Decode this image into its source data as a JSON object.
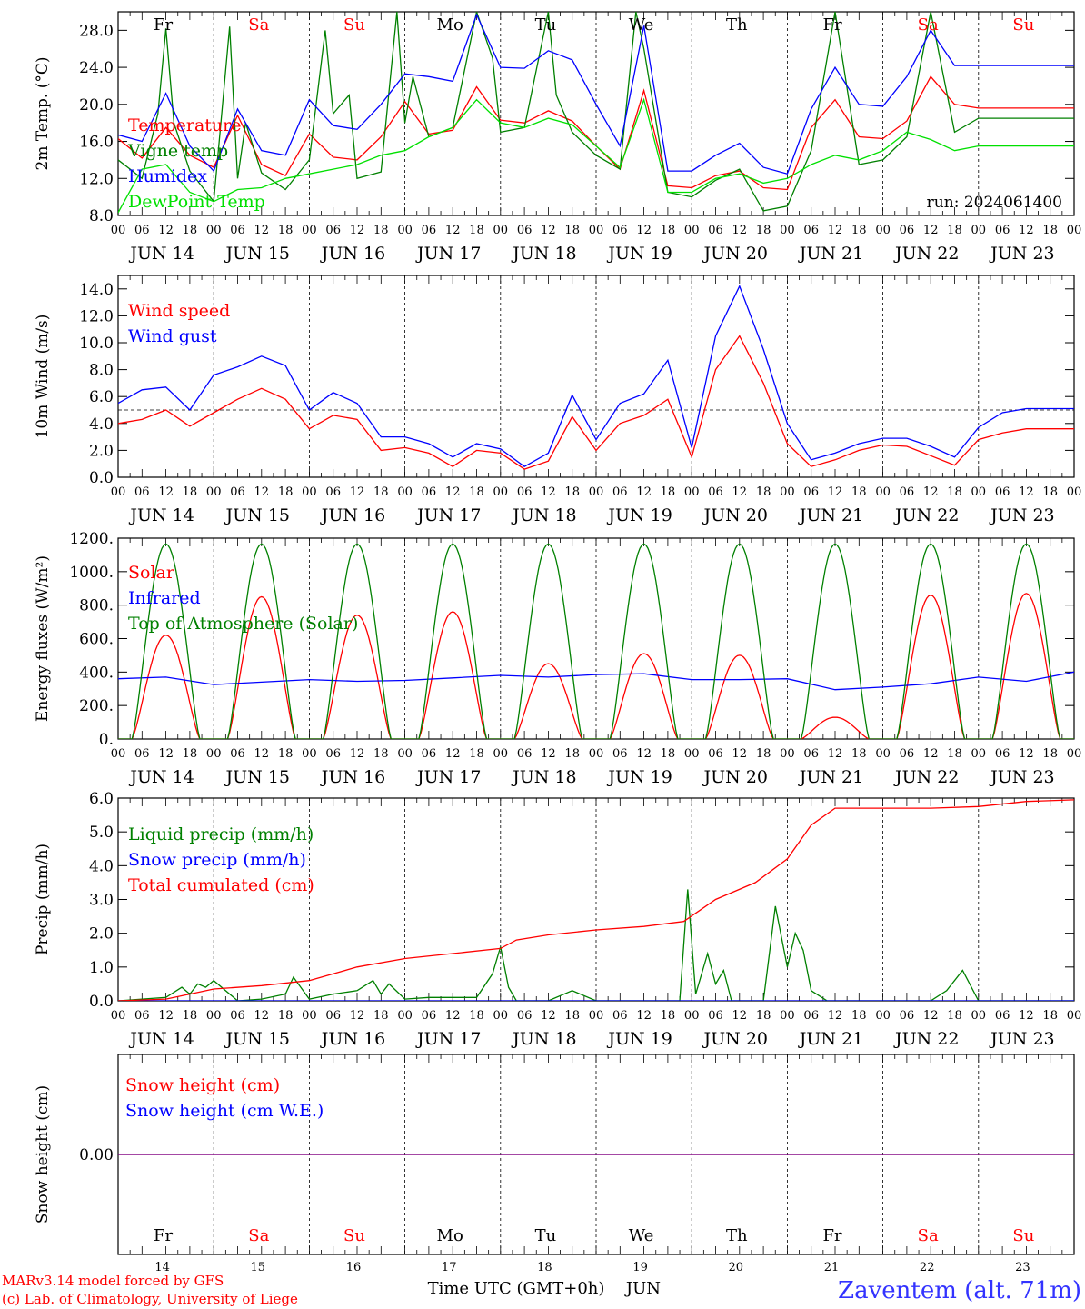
{
  "colors": {
    "red": "#ff0000",
    "green": "#008000",
    "blue": "#0000ff",
    "lightgreen": "#00e000",
    "purple": "#800080",
    "axis": "#000000",
    "footer_blue": "#3333ff"
  },
  "common": {
    "hour_ticks": [
      "00",
      "06",
      "12",
      "18"
    ],
    "last_tick": "00",
    "dates": [
      "JUN 14",
      "JUN 15",
      "JUN 16",
      "JUN 17",
      "JUN 18",
      "JUN 19",
      "JUN 20",
      "JUN 21",
      "JUN 22",
      "JUN 23"
    ],
    "weekdays": [
      "Fr",
      "Sa",
      "Su",
      "Mo",
      "Tu",
      "We",
      "Th",
      "Fr",
      "Sa",
      "Su"
    ],
    "weekday_colors": [
      "#000000",
      "#ff0000",
      "#ff0000",
      "#000000",
      "#000000",
      "#000000",
      "#000000",
      "#000000",
      "#ff0000",
      "#ff0000"
    ],
    "day_numbers": [
      "14",
      "15",
      "16",
      "17",
      "18",
      "19",
      "20",
      "21",
      "22",
      "23"
    ]
  },
  "footer": {
    "model_line": "MARv3.14 model forced by GFS",
    "credit_line": "(c) Lab. of Climatology, University of Liege",
    "xlabel": "Time UTC (GMT+0h)",
    "month": "JUN",
    "station": "Zaventem (alt. 71m)"
  },
  "chart_data": [
    {
      "type": "line",
      "ylabel": "2m Temp. (°C)",
      "ylim": [
        8,
        30
      ],
      "yticks": [
        8,
        12,
        16,
        20,
        24,
        28
      ],
      "ytick_labels": [
        "8.0",
        "12.0",
        "16.0",
        "20.0",
        "24.0",
        "28.0"
      ],
      "annotation": "run: 2024061400",
      "x_unit": "hours since JUN 14 00 UTC",
      "legend": "top-left",
      "series": [
        {
          "name": "Temperature",
          "color": "#ff0000",
          "x": [
            0,
            6,
            12,
            18,
            24,
            30,
            36,
            42,
            48,
            54,
            60,
            66,
            72,
            78,
            84,
            90,
            96,
            102,
            108,
            114,
            120,
            126,
            132,
            138,
            144,
            150,
            156,
            162,
            168,
            174,
            180,
            186,
            192,
            198,
            204,
            210,
            216,
            222,
            228,
            234,
            240
          ],
          "y": [
            16.3,
            14.2,
            17.5,
            14.5,
            13.2,
            18.8,
            13.5,
            12.3,
            16.8,
            14.3,
            14.0,
            16.5,
            20.3,
            16.8,
            17.2,
            21.9,
            18.3,
            18.0,
            19.3,
            18.2,
            15.5,
            13.0,
            21.5,
            11.2,
            11.0,
            12.3,
            12.8,
            11.0,
            10.8,
            17.5,
            20.5,
            16.5,
            16.3,
            18.2,
            23.0,
            20.0,
            19.6,
            19.6,
            19.6,
            19.6,
            19.6
          ]
        },
        {
          "name": "Vigne temp",
          "color": "#008000",
          "x": [
            0,
            6,
            10,
            12,
            14,
            18,
            24,
            28,
            30,
            32,
            36,
            42,
            48,
            52,
            54,
            58,
            60,
            66,
            70,
            72,
            74,
            78,
            84,
            90,
            94,
            96,
            102,
            108,
            110,
            114,
            120,
            126,
            130,
            132,
            138,
            144,
            150,
            156,
            162,
            168,
            174,
            180,
            186,
            192,
            198,
            204,
            210,
            216,
            222,
            228,
            234,
            240
          ],
          "y": [
            14.0,
            12.0,
            19.0,
            28.2,
            18.0,
            12.8,
            9.5,
            28.4,
            12.0,
            18.0,
            12.6,
            10.8,
            14.0,
            28.0,
            19.0,
            21.0,
            12.0,
            12.7,
            30.0,
            18.0,
            23.0,
            16.5,
            17.5,
            30.0,
            25.0,
            17.0,
            17.5,
            30.0,
            21.0,
            17.0,
            14.5,
            13.0,
            30.0,
            26.0,
            10.5,
            10.0,
            11.8,
            13.0,
            8.5,
            9.0,
            15.0,
            30.0,
            13.5,
            14.0,
            16.5,
            30.0,
            17.0,
            18.5,
            18.5,
            18.5,
            18.5,
            18.5
          ]
        },
        {
          "name": "Humidex",
          "color": "#0000ff",
          "x": [
            0,
            6,
            12,
            18,
            24,
            30,
            36,
            42,
            48,
            54,
            60,
            66,
            72,
            78,
            84,
            90,
            96,
            102,
            108,
            114,
            120,
            126,
            132,
            138,
            144,
            150,
            156,
            162,
            168,
            174,
            180,
            186,
            192,
            198,
            204,
            210,
            216,
            222,
            228,
            234,
            240
          ],
          "y": [
            16.7,
            16.0,
            21.2,
            15.5,
            12.8,
            19.5,
            15.0,
            14.5,
            20.5,
            17.7,
            17.3,
            20.0,
            23.3,
            23.0,
            22.5,
            29.7,
            24.0,
            23.9,
            25.8,
            24.8,
            20.0,
            15.5,
            28.5,
            12.8,
            12.8,
            14.5,
            15.8,
            13.2,
            12.5,
            19.5,
            24.0,
            20.0,
            19.8,
            23.0,
            28.0,
            24.2,
            24.2,
            24.2,
            24.2,
            24.2,
            24.2
          ]
        },
        {
          "name": "DewPoint Temp",
          "color": "#00e000",
          "x": [
            0,
            6,
            12,
            18,
            24,
            30,
            36,
            42,
            48,
            54,
            60,
            66,
            72,
            78,
            84,
            90,
            96,
            102,
            108,
            114,
            120,
            126,
            132,
            138,
            144,
            150,
            156,
            162,
            168,
            174,
            180,
            186,
            192,
            198,
            204,
            210,
            216,
            222,
            228,
            234,
            240
          ],
          "y": [
            8.3,
            13.0,
            13.5,
            10.5,
            9.5,
            10.8,
            11.0,
            12.0,
            12.5,
            13.0,
            13.5,
            14.5,
            15.0,
            16.5,
            17.5,
            20.5,
            18.0,
            17.5,
            18.5,
            17.8,
            15.5,
            13.2,
            20.5,
            10.5,
            10.5,
            12.0,
            12.5,
            11.5,
            12.0,
            13.5,
            14.5,
            14.0,
            15.0,
            17.0,
            16.2,
            15.0,
            15.5,
            15.5,
            15.5,
            15.5,
            15.5
          ]
        }
      ]
    },
    {
      "type": "line",
      "ylabel": "10m Wind (m/s)",
      "ylim": [
        0,
        15
      ],
      "yticks": [
        0,
        2,
        4,
        6,
        8,
        10,
        12,
        14
      ],
      "ytick_labels": [
        "0.0",
        "2.0",
        "4.0",
        "6.0",
        "8.0",
        "10.0",
        "12.0",
        "14.0"
      ],
      "reference_line": 5.0,
      "x_unit": "hours since JUN 14 00 UTC",
      "legend": "top-left",
      "series": [
        {
          "name": "Wind speed",
          "color": "#ff0000",
          "x": [
            0,
            6,
            12,
            18,
            24,
            30,
            36,
            42,
            48,
            54,
            60,
            66,
            72,
            78,
            84,
            90,
            96,
            102,
            108,
            114,
            120,
            126,
            132,
            138,
            144,
            150,
            156,
            162,
            168,
            174,
            180,
            186,
            192,
            198,
            204,
            210,
            216,
            222,
            228,
            234,
            240
          ],
          "y": [
            4.0,
            4.3,
            5.0,
            3.8,
            4.8,
            5.8,
            6.6,
            5.8,
            3.6,
            4.6,
            4.3,
            2.0,
            2.2,
            1.8,
            0.8,
            2.0,
            1.8,
            0.6,
            1.2,
            4.5,
            2.0,
            4.0,
            4.6,
            5.8,
            1.5,
            8.0,
            10.5,
            7.0,
            2.5,
            0.8,
            1.3,
            2.0,
            2.4,
            2.3,
            1.6,
            0.9,
            2.8,
            3.3,
            3.6,
            3.6,
            3.6
          ]
        },
        {
          "name": "Wind gust",
          "color": "#0000ff",
          "x": [
            0,
            6,
            12,
            18,
            24,
            30,
            36,
            42,
            48,
            54,
            60,
            66,
            72,
            78,
            84,
            90,
            96,
            102,
            108,
            114,
            120,
            126,
            132,
            138,
            144,
            150,
            156,
            162,
            168,
            174,
            180,
            186,
            192,
            198,
            204,
            210,
            216,
            222,
            228,
            234,
            240
          ],
          "y": [
            5.5,
            6.5,
            6.7,
            5.0,
            7.6,
            8.2,
            9.0,
            8.3,
            5.0,
            6.3,
            5.5,
            3.0,
            3.0,
            2.5,
            1.5,
            2.5,
            2.1,
            0.8,
            1.8,
            6.1,
            2.8,
            5.5,
            6.2,
            8.7,
            2.2,
            10.5,
            14.2,
            9.5,
            4.0,
            1.3,
            1.8,
            2.5,
            2.9,
            2.9,
            2.3,
            1.5,
            3.7,
            4.8,
            5.1,
            5.1,
            5.1
          ]
        }
      ]
    },
    {
      "type": "line",
      "ylabel": "Energy fluxes (W/m²)",
      "ylim": [
        0,
        1200
      ],
      "yticks": [
        0,
        200,
        400,
        600,
        800,
        1000,
        1200
      ],
      "ytick_labels": [
        "0.",
        "200.",
        "400.",
        "600.",
        "800.",
        "1000.",
        "1200."
      ],
      "x_unit": "hours since JUN 14 00 UTC",
      "legend": "top-left",
      "series": [
        {
          "name": "Solar",
          "color": "#ff0000",
          "days_peak": [
            620,
            850,
            740,
            760,
            450,
            510,
            500,
            130,
            860,
            870
          ],
          "day_start_h": 3.5,
          "day_end_h": 20.5
        },
        {
          "name": "Infrared",
          "color": "#0000ff",
          "x": [
            0,
            12,
            24,
            36,
            48,
            60,
            72,
            84,
            96,
            108,
            120,
            132,
            144,
            156,
            168,
            180,
            192,
            204,
            216,
            228,
            240
          ],
          "y": [
            360,
            370,
            325,
            340,
            355,
            345,
            350,
            365,
            380,
            370,
            385,
            390,
            355,
            355,
            360,
            295,
            310,
            330,
            370,
            345,
            400
          ]
        },
        {
          "name": "Top of Atmosphere (Solar)",
          "color": "#008000",
          "days_peak": [
            1165,
            1165,
            1165,
            1165,
            1165,
            1165,
            1165,
            1165,
            1165,
            1165
          ],
          "day_start_h": 3.5,
          "day_end_h": 20.5
        }
      ]
    },
    {
      "type": "line",
      "ylabel": "Precip (mm/h)",
      "ylim": [
        0,
        6
      ],
      "yticks": [
        0,
        1,
        2,
        3,
        4,
        5,
        6
      ],
      "ytick_labels": [
        "0.0",
        "1.0",
        "2.0",
        "3.0",
        "4.0",
        "5.0",
        "6.0"
      ],
      "x_unit": "hours since JUN 14 00 UTC",
      "legend": "top-left",
      "series": [
        {
          "name": "Liquid precip (mm/h)",
          "color": "#008000",
          "x": [
            0,
            12,
            16,
            18,
            20,
            22,
            24,
            30,
            36,
            42,
            44,
            48,
            54,
            60,
            64,
            66,
            68,
            72,
            78,
            90,
            94,
            96,
            98,
            100,
            108,
            114,
            120,
            132,
            141,
            143,
            145,
            148,
            150,
            152,
            154,
            158,
            162,
            165,
            168,
            170,
            172,
            174,
            178,
            180,
            190,
            192,
            200,
            204,
            208,
            212,
            216,
            222,
            228,
            234,
            240
          ],
          "y": [
            0.0,
            0.1,
            0.4,
            0.2,
            0.5,
            0.4,
            0.6,
            0.0,
            0.05,
            0.2,
            0.7,
            0.05,
            0.2,
            0.3,
            0.6,
            0.2,
            0.5,
            0.05,
            0.1,
            0.1,
            0.8,
            1.6,
            0.4,
            0.0,
            0.0,
            0.3,
            0.0,
            0.0,
            0.0,
            3.3,
            0.2,
            1.4,
            0.5,
            0.9,
            0.0,
            0.0,
            0.0,
            2.8,
            1.0,
            2.0,
            1.5,
            0.3,
            0.0,
            0.0,
            0.0,
            0.0,
            0.0,
            0.0,
            0.3,
            0.9,
            0.0,
            0.0,
            0.0,
            0.0,
            0.0
          ]
        },
        {
          "name": "Snow precip (mm/h)",
          "color": "#0000ff",
          "x": [
            0,
            240
          ],
          "y": [
            0,
            0
          ]
        },
        {
          "name": "Total cumulated (cm)",
          "color": "#ff0000",
          "x": [
            0,
            12,
            18,
            24,
            36,
            48,
            60,
            72,
            84,
            96,
            100,
            108,
            120,
            132,
            142,
            150,
            160,
            168,
            174,
            180,
            192,
            204,
            216,
            228,
            240
          ],
          "y": [
            0.0,
            0.05,
            0.2,
            0.35,
            0.45,
            0.6,
            1.0,
            1.25,
            1.4,
            1.55,
            1.8,
            1.95,
            2.1,
            2.2,
            2.35,
            3.0,
            3.5,
            4.2,
            5.2,
            5.7,
            5.7,
            5.7,
            5.75,
            5.9,
            5.95
          ]
        }
      ]
    },
    {
      "type": "line",
      "ylabel": "Snow height (cm)",
      "ylim": [
        -1,
        1
      ],
      "yticks": [
        0
      ],
      "ytick_labels": [
        "0.00"
      ],
      "x_unit": "hours since JUN 14 00 UTC",
      "legend": "top-left",
      "series": [
        {
          "name": "Snow height (cm)",
          "color": "#ff0000",
          "x": [
            0,
            240
          ],
          "y": [
            0,
            0
          ]
        },
        {
          "name": "Snow height (cm W.E.)",
          "color": "#0000ff",
          "x": [
            0,
            240
          ],
          "y": [
            0,
            0
          ]
        }
      ]
    }
  ]
}
